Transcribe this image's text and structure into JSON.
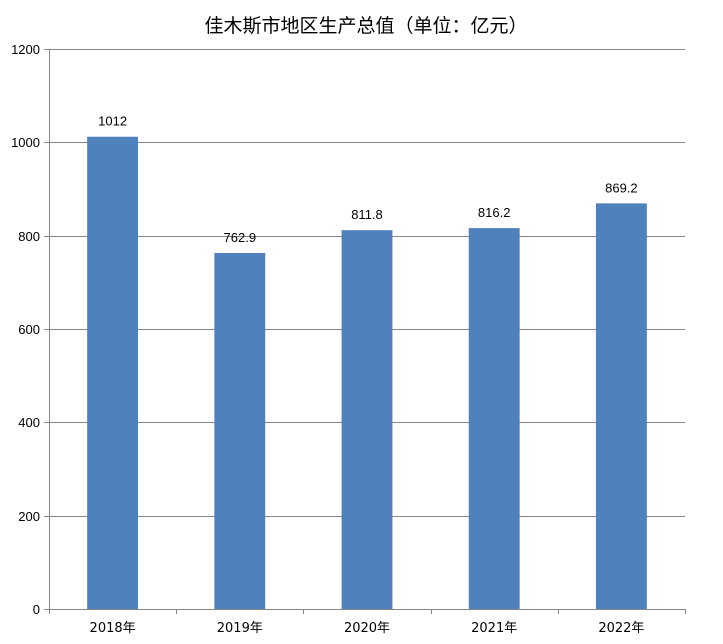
{
  "chart_data": {
    "type": "bar",
    "title": "佳木斯市地区生产总值（单位：亿元）",
    "categories": [
      "2018年",
      "2019年",
      "2020年",
      "2021年",
      "2022年"
    ],
    "values": [
      1012,
      762.9,
      811.8,
      816.2,
      869.2
    ],
    "value_labels": [
      "1012",
      "762.9",
      "811.8",
      "816.2",
      "869.2"
    ],
    "xlabel": "",
    "ylabel": "",
    "ylim": [
      0,
      1200
    ],
    "yticks": [
      0,
      200,
      400,
      600,
      800,
      1000,
      1200
    ],
    "grid": true,
    "legend": "none",
    "bar_color": "#4F81BD",
    "grid_color": "#868686"
  }
}
